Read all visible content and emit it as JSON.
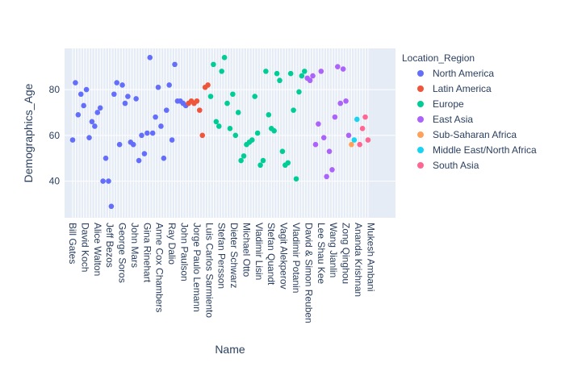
{
  "chart_data": {
    "type": "scatter",
    "xlabel": "Name",
    "ylabel": "Demographics_Age",
    "yticks": [
      40,
      60,
      80
    ],
    "ylim": [
      24,
      98
    ],
    "grid": true,
    "legend_title": "Location_Region",
    "legend_position": "right",
    "x_tick_labels": [
      "Bill Gates",
      "David Koch",
      "Alice Walton",
      "Jeff Bezos",
      "George Soros",
      "John Mars",
      "Gina Rinehart",
      "Anne Cox Chambers",
      "Ray Dalio",
      "John Paulson",
      "Jorge Paulo Lemann",
      "Luis Carlos Sarmiento",
      "Stefan Persson",
      "Dieter Schwarz",
      "Michael Otto",
      "Vladimir Lisin",
      "Stefan Quandt",
      "Vagit Alekperov",
      "Vladimir Potanin",
      "David & Simon Reuben",
      "Lee Shau Kee",
      "Wang Jianlin",
      "Zong Qinghou",
      "Ananda Krishnan",
      "Mukesh Ambani"
    ],
    "series": [
      {
        "name": "North America",
        "color": "#636efa",
        "x": [
          0,
          1,
          2,
          3,
          4,
          5,
          6,
          7,
          8,
          9,
          10,
          11,
          12,
          13,
          14,
          15,
          16,
          17,
          18,
          19,
          20,
          21,
          22,
          23,
          24,
          25,
          26,
          27,
          28,
          29,
          30,
          31,
          32,
          33,
          34,
          35,
          36,
          37,
          38,
          39,
          40,
          41
        ],
        "y": [
          58,
          83,
          69,
          78,
          73,
          80,
          59,
          66,
          64,
          70,
          72,
          40,
          50,
          40,
          29,
          78,
          83,
          56,
          82,
          74,
          77,
          57,
          56,
          76,
          49,
          60,
          52,
          61,
          94,
          61,
          68,
          81,
          64,
          50,
          71,
          82,
          58,
          91,
          75,
          75,
          74,
          73
        ]
      },
      {
        "name": "Latin America",
        "color": "#ef553b",
        "x": [
          42,
          43,
          44,
          45,
          46,
          47,
          48,
          49
        ],
        "y": [
          74,
          75,
          74,
          75,
          71,
          60,
          81,
          82
        ]
      },
      {
        "name": "Europe",
        "color": "#00cc96",
        "x": [
          50,
          51,
          52,
          53,
          54,
          55,
          56,
          57,
          58,
          59,
          60,
          61,
          62,
          63,
          64,
          65,
          66,
          67,
          68,
          69,
          70,
          71,
          72,
          73,
          74,
          75,
          76,
          77,
          78,
          79,
          80,
          81,
          82,
          83,
          84
        ],
        "y": [
          77,
          91,
          66,
          64,
          88,
          94,
          74,
          63,
          78,
          60,
          70,
          49,
          51,
          56,
          57,
          58,
          77,
          61,
          47,
          49,
          88,
          69,
          63,
          62,
          87,
          84,
          53,
          47,
          48,
          87,
          71,
          41,
          79,
          86,
          88
        ]
      },
      {
        "name": "East Asia",
        "color": "#ab63fa",
        "x": [
          85,
          86,
          87,
          88,
          89,
          90,
          91,
          92,
          93,
          94,
          95,
          96,
          97,
          98,
          99,
          100
        ],
        "y": [
          85,
          84,
          86,
          56,
          65,
          88,
          59,
          42,
          53,
          45,
          68,
          90,
          74,
          89,
          75,
          60
        ]
      },
      {
        "name": "Sub-Saharan Africa",
        "color": "#ffa15a",
        "x": [
          101
        ],
        "y": [
          56
        ]
      },
      {
        "name": "Middle East/North Africa",
        "color": "#19d3f3",
        "x": [
          102,
          103
        ],
        "y": [
          58,
          67
        ]
      },
      {
        "name": "South Asia",
        "color": "#ff6692",
        "x": [
          104,
          105,
          106,
          107
        ],
        "y": [
          56,
          63,
          68,
          58
        ]
      }
    ]
  }
}
